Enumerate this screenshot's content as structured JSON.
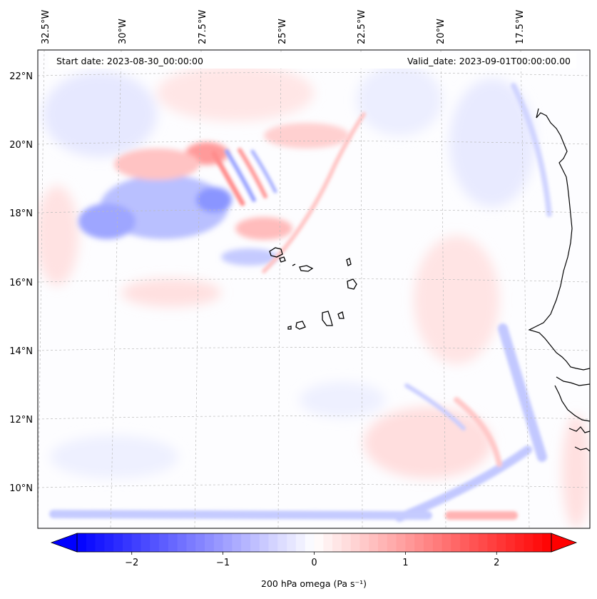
{
  "map": {
    "header": {
      "start_date": "Start date: 2023-08-30_00:00:00",
      "valid_date": "Valid_date: 2023-09-01T00:00:00.00"
    },
    "longitude_labels": [
      "32.5°W",
      "30°W",
      "27.5°W",
      "25°W",
      "22.5°W",
      "20°W",
      "17.5°W"
    ],
    "latitude_labels": [
      "22°N",
      "20°N",
      "18°N",
      "16°N",
      "14°N",
      "12°N",
      "10°N"
    ],
    "field": "200 hPa omega",
    "colors": {
      "negative": "#0000ff",
      "neutral": "#ffffff",
      "positive": "#ff0000",
      "coastline": "#000000",
      "gridline": "#bbbbbb"
    }
  },
  "colorbar": {
    "ticks": [
      "−2",
      "−1",
      "0",
      "1",
      "2"
    ],
    "tick_values": [
      -2,
      -1,
      0,
      1,
      2
    ],
    "range": [
      -2.6,
      2.6
    ],
    "extend": "both",
    "label": "200 hPa omega (Pa s⁻¹)"
  }
}
